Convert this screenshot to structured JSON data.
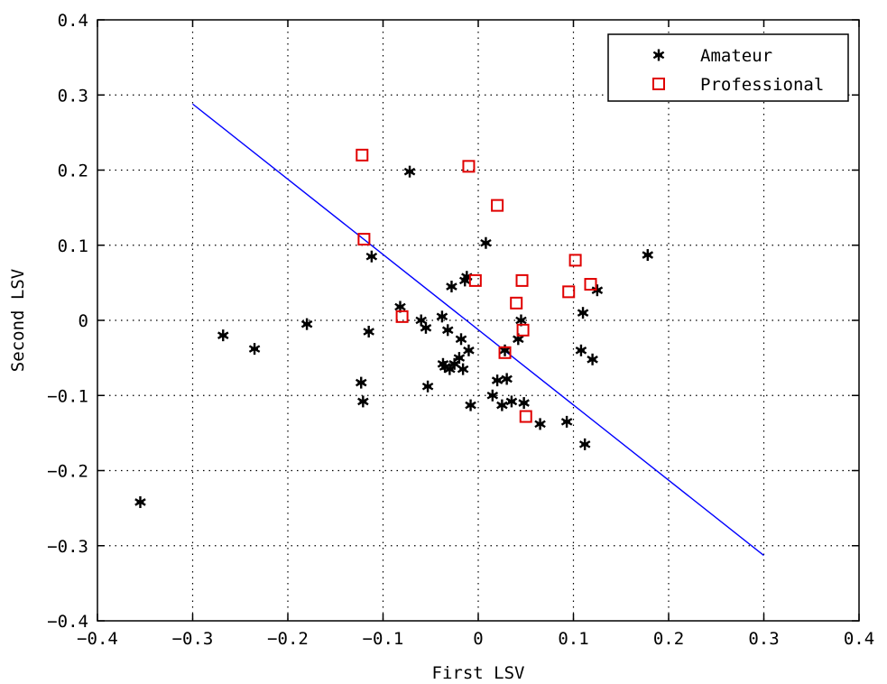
{
  "chart_data": {
    "type": "scatter",
    "title": "",
    "xlabel": "First LSV",
    "ylabel": "Second LSV",
    "xlim": [
      -0.4,
      0.4
    ],
    "ylim": [
      -0.4,
      0.4
    ],
    "x_ticks": [
      -0.4,
      -0.3,
      -0.2,
      -0.1,
      0,
      0.1,
      0.2,
      0.3,
      0.4
    ],
    "y_ticks": [
      -0.4,
      -0.3,
      -0.2,
      -0.1,
      0,
      0.1,
      0.2,
      0.3,
      0.4
    ],
    "x_tick_labels": [
      "−0.4",
      "−0.3",
      "−0.2",
      "−0.1",
      "0",
      "0.1",
      "0.2",
      "0.3",
      "0.4"
    ],
    "y_tick_labels": [
      "−0.4",
      "−0.3",
      "−0.2",
      "−0.1",
      "0",
      "0.1",
      "0.2",
      "0.3",
      "0.4"
    ],
    "grid": true,
    "legend_position": "top-right",
    "series": [
      {
        "name": "Amateur",
        "marker": "asterisk",
        "color": "#000000",
        "points": [
          [
            -0.355,
            -0.242
          ],
          [
            -0.268,
            -0.02
          ],
          [
            -0.235,
            -0.038
          ],
          [
            -0.18,
            -0.005
          ],
          [
            -0.123,
            -0.083
          ],
          [
            -0.121,
            -0.108
          ],
          [
            -0.115,
            -0.015
          ],
          [
            -0.112,
            0.085
          ],
          [
            -0.082,
            0.018
          ],
          [
            -0.072,
            0.198
          ],
          [
            -0.06,
            0.0
          ],
          [
            -0.055,
            -0.01
          ],
          [
            -0.053,
            -0.088
          ],
          [
            -0.038,
            0.005
          ],
          [
            -0.037,
            -0.058
          ],
          [
            -0.035,
            -0.062
          ],
          [
            -0.032,
            -0.013
          ],
          [
            -0.03,
            -0.065
          ],
          [
            -0.028,
            0.045
          ],
          [
            -0.025,
            -0.058
          ],
          [
            -0.02,
            -0.05
          ],
          [
            -0.018,
            -0.025
          ],
          [
            -0.016,
            -0.065
          ],
          [
            -0.014,
            0.053
          ],
          [
            -0.012,
            0.058
          ],
          [
            -0.01,
            -0.04
          ],
          [
            -0.008,
            -0.113
          ],
          [
            0.008,
            0.103
          ],
          [
            0.015,
            -0.1
          ],
          [
            0.02,
            -0.08
          ],
          [
            0.025,
            -0.113
          ],
          [
            0.028,
            -0.04
          ],
          [
            0.03,
            -0.078
          ],
          [
            0.035,
            -0.108
          ],
          [
            0.042,
            -0.025
          ],
          [
            0.045,
            0.0
          ],
          [
            0.048,
            -0.11
          ],
          [
            0.065,
            -0.138
          ],
          [
            0.093,
            -0.135
          ],
          [
            0.108,
            -0.04
          ],
          [
            0.11,
            0.01
          ],
          [
            0.112,
            -0.165
          ],
          [
            0.12,
            -0.052
          ],
          [
            0.125,
            0.04
          ],
          [
            0.178,
            0.087
          ]
        ]
      },
      {
        "name": "Professional",
        "marker": "square",
        "color": "#e00000",
        "points": [
          [
            -0.122,
            0.22
          ],
          [
            -0.12,
            0.108
          ],
          [
            -0.08,
            0.005
          ],
          [
            -0.01,
            0.205
          ],
          [
            -0.003,
            0.053
          ],
          [
            0.02,
            0.153
          ],
          [
            0.028,
            -0.043
          ],
          [
            0.04,
            0.023
          ],
          [
            0.046,
            0.053
          ],
          [
            0.047,
            -0.013
          ],
          [
            0.05,
            -0.128
          ],
          [
            0.095,
            0.038
          ],
          [
            0.102,
            0.08
          ],
          [
            0.118,
            0.048
          ]
        ]
      }
    ],
    "lines": [
      {
        "color": "#0000ff",
        "from": [
          -0.3,
          0.288
        ],
        "to": [
          0.3,
          -0.313
        ]
      }
    ]
  }
}
